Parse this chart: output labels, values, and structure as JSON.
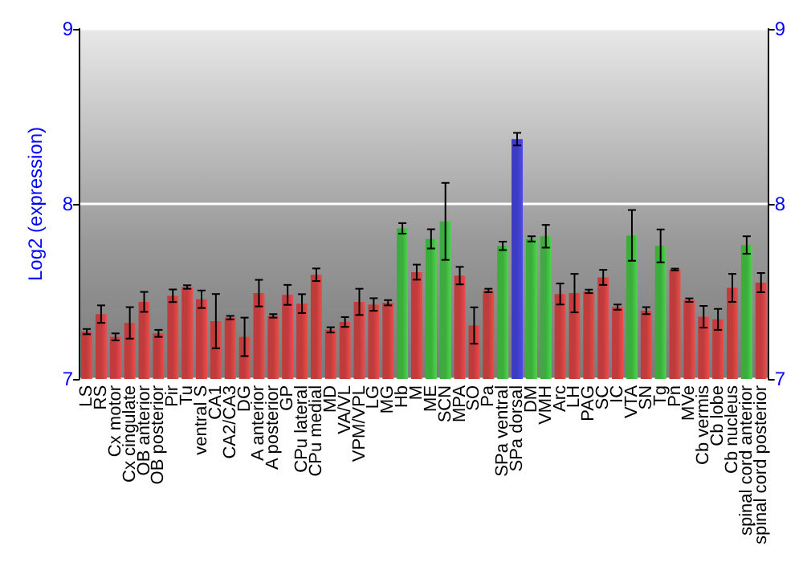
{
  "chart_data": {
    "type": "bar",
    "ylabel": "Log2 (expression)",
    "categories": [
      "LS",
      "RS",
      "Cx motor",
      "Cx cingulate",
      "OB anterior",
      "OB posterior",
      "Pir",
      "Tu",
      "ventral S",
      "CA1",
      "CA2/CA3",
      "DG",
      "A anterior",
      "A posterior",
      "GP",
      "CPu lateral",
      "CPu medial",
      "MD",
      "VA/VL",
      "VPM/VPL",
      "LG",
      "MG",
      "Hb",
      "M",
      "ME",
      "SCN",
      "MPA",
      "SO",
      "Pa",
      "SPa ventral",
      "SPa dorsal",
      "DM",
      "VMH",
      "Arc",
      "LH",
      "PAG",
      "SC",
      "IC",
      "VTA",
      "SN",
      "Tg",
      "Pn",
      "MVe",
      "Cb vermis",
      "Cb lobe",
      "Cb nucleus",
      "spinal cord anterior",
      "spinal cord posterior"
    ],
    "values": [
      7.27,
      7.37,
      7.24,
      7.32,
      7.44,
      7.26,
      7.475,
      7.525,
      7.455,
      7.33,
      7.35,
      7.24,
      7.49,
      7.36,
      7.48,
      7.43,
      7.595,
      7.28,
      7.325,
      7.44,
      7.425,
      7.435,
      7.86,
      7.61,
      7.8,
      7.9,
      7.59,
      7.305,
      7.505,
      7.76,
      8.37,
      7.8,
      7.815,
      7.485,
      7.49,
      7.5,
      7.58,
      7.41,
      7.82,
      7.39,
      7.76,
      7.625,
      7.45,
      7.355,
      7.34,
      7.52,
      7.765,
      7.55
    ],
    "errors": [
      0.015,
      0.05,
      0.02,
      0.09,
      0.057,
      0.02,
      0.036,
      0.01,
      0.05,
      0.155,
      0.01,
      0.11,
      0.076,
      0.01,
      0.057,
      0.054,
      0.036,
      0.015,
      0.028,
      0.075,
      0.036,
      0.015,
      0.03,
      0.043,
      0.055,
      0.22,
      0.05,
      0.104,
      0.01,
      0.024,
      0.036,
      0.015,
      0.065,
      0.06,
      0.11,
      0.01,
      0.043,
      0.015,
      0.145,
      0.02,
      0.094,
      0.005,
      0.01,
      0.062,
      0.06,
      0.08,
      0.05,
      0.055
    ],
    "colors": [
      "#c03c3c",
      "#c03c3c",
      "#c03c3c",
      "#c03c3c",
      "#c03c3c",
      "#c03c3c",
      "#c03c3c",
      "#c03c3c",
      "#c03c3c",
      "#c03c3c",
      "#c03c3c",
      "#c03c3c",
      "#c03c3c",
      "#c03c3c",
      "#c03c3c",
      "#c03c3c",
      "#c03c3c",
      "#c03c3c",
      "#c03c3c",
      "#c03c3c",
      "#c03c3c",
      "#c03c3c",
      "#3cac3c",
      "#c03c3c",
      "#3cac3c",
      "#3cac3c",
      "#c03c3c",
      "#c03c3c",
      "#c03c3c",
      "#3cac3c",
      "#3c3cc0",
      "#3cac3c",
      "#3cac3c",
      "#c03c3c",
      "#c03c3c",
      "#c03c3c",
      "#c03c3c",
      "#c03c3c",
      "#3cac3c",
      "#c03c3c",
      "#3cac3c",
      "#c03c3c",
      "#c03c3c",
      "#c03c3c",
      "#c03c3c",
      "#c03c3c",
      "#3cac3c",
      "#c03c3c"
    ],
    "ylim": [
      7,
      9
    ],
    "yticks": [
      7,
      8,
      9
    ],
    "y2lim": [
      7,
      9
    ],
    "y2ticks": [
      7,
      8,
      9
    ],
    "grid": "y"
  }
}
